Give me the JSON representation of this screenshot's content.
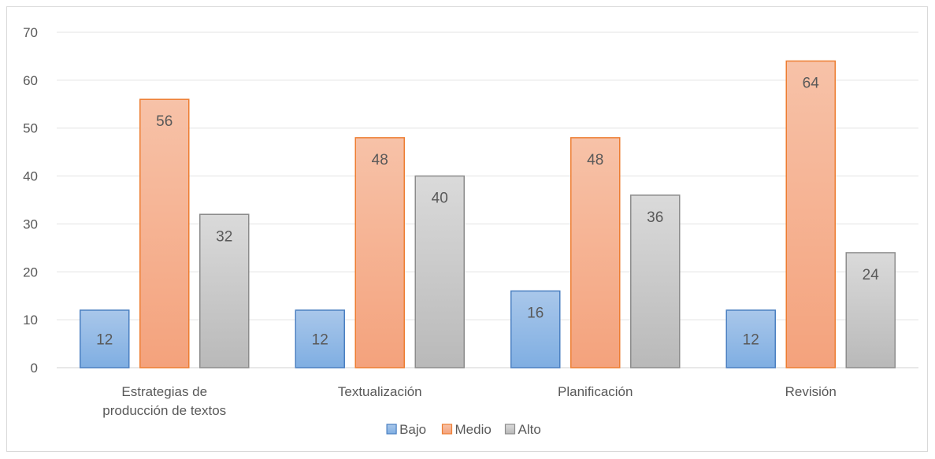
{
  "chart_data": {
    "type": "bar",
    "categories": [
      [
        "Estrategias de",
        "producción de textos"
      ],
      [
        "Textualización"
      ],
      [
        "Planificación"
      ],
      [
        "Revisión"
      ]
    ],
    "series": [
      {
        "name": "Bajo",
        "values": [
          12,
          12,
          16,
          12
        ],
        "fill_top": "#a9c7ea",
        "fill_bottom": "#7faee2",
        "stroke": "#4a7fc1"
      },
      {
        "name": "Medio",
        "values": [
          56,
          48,
          48,
          64
        ],
        "fill_top": "#f7c2a8",
        "fill_bottom": "#f4a27c",
        "stroke": "#ed7d31"
      },
      {
        "name": "Alto",
        "values": [
          32,
          40,
          36,
          24
        ],
        "fill_top": "#dadada",
        "fill_bottom": "#b9b9b9",
        "stroke": "#8c8c8c"
      }
    ],
    "ylim": [
      0,
      70
    ],
    "yticks": [
      "0",
      "10",
      "20",
      "30",
      "40",
      "50",
      "60",
      "70"
    ],
    "grid": true,
    "legend": "bottom",
    "title": "",
    "xlabel": "",
    "ylabel": ""
  }
}
